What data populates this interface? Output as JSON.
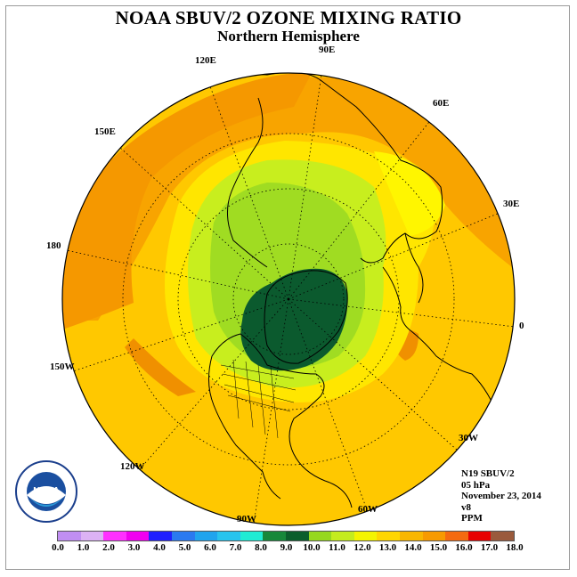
{
  "title": "NOAA SBUV/2 OZONE MIXING RATIO",
  "subtitle": "Northern Hemisphere",
  "longitude_labels": {
    "e90": "90E",
    "e60": "60E",
    "e30": "30E",
    "zero": "0",
    "w30": "30W",
    "w60": "60W",
    "w90": "90W",
    "w120": "120W",
    "w150": "150W",
    "l180": "180",
    "e150": "150E",
    "e120": "120E"
  },
  "info": {
    "satellite": "N19 SBUV/2",
    "level": "05 hPa",
    "date": "November 23, 2014",
    "version": "v8",
    "units": "PPM"
  },
  "colorbar": {
    "colors": [
      "#bf80ef",
      "#dfb0f6",
      "#ef00ef",
      "#ff00ff",
      "#0000f0",
      "#1f64f0",
      "#1f9fef",
      "#19c2f2",
      "#13e8e8",
      "#20f0c0",
      "#1a8f3a",
      "#0a5a2a",
      "#90d820",
      "#c0ec20",
      "#f0f000",
      "#fff03a",
      "#ffd000",
      "#f8b000",
      "#f89000",
      "#f06010",
      "#e80000",
      "#a06040"
    ],
    "swatches": [
      "#c08ef2",
      "#dcb2f4",
      "#ff30ff",
      "#f000f0",
      "#2020ff",
      "#2a7af0",
      "#20a4ee",
      "#28c4ee",
      "#20ecd4",
      "#17883a",
      "#0b5e2c",
      "#96d81e",
      "#c4ec1e",
      "#f4f400",
      "#ffd600",
      "#f9b600",
      "#f79a00",
      "#f46a10",
      "#e80000",
      "#9a5a3c"
    ],
    "ticks": [
      "0.0",
      "1.0",
      "2.0",
      "3.0",
      "4.0",
      "5.0",
      "6.0",
      "7.0",
      "8.0",
      "9.0",
      "10.0",
      "11.0",
      "12.0",
      "13.0",
      "14.0",
      "15.0",
      "16.0",
      "17.0",
      "18.0"
    ]
  },
  "logo_text": "NOAA"
}
